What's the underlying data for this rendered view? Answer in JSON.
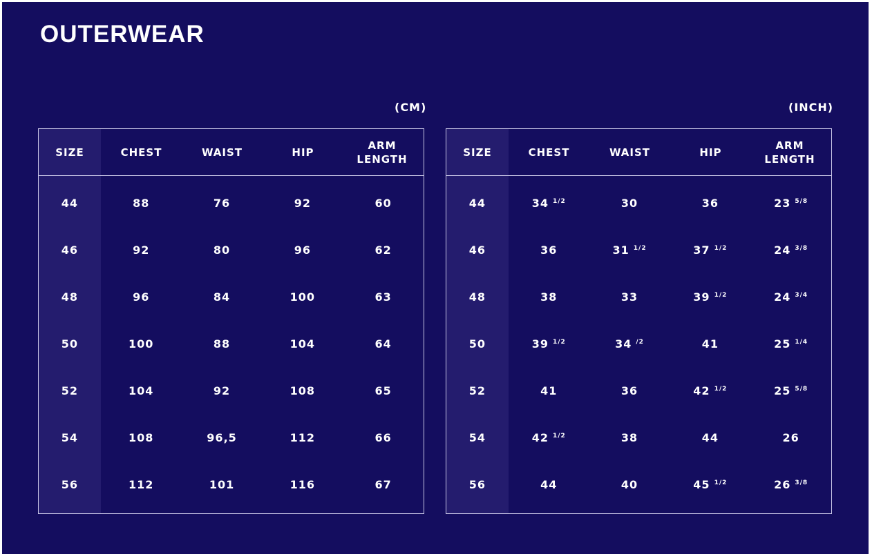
{
  "title": "OUTERWEAR",
  "colors": {
    "background": "#140d5f",
    "size_column": "#241c6e",
    "border": "#c9c6e6",
    "text": "#ffffff"
  },
  "tables": [
    {
      "unit": "(CM)",
      "headers": [
        "SIZE",
        "CHEST",
        "WAIST",
        "HIP",
        "ARM LENGTH"
      ],
      "rows": [
        [
          [
            "44",
            ""
          ],
          [
            "88",
            ""
          ],
          [
            "76",
            ""
          ],
          [
            "92",
            ""
          ],
          [
            "60",
            ""
          ]
        ],
        [
          [
            "46",
            ""
          ],
          [
            "92",
            ""
          ],
          [
            "80",
            ""
          ],
          [
            "96",
            ""
          ],
          [
            "62",
            ""
          ]
        ],
        [
          [
            "48",
            ""
          ],
          [
            "96",
            ""
          ],
          [
            "84",
            ""
          ],
          [
            "100",
            ""
          ],
          [
            "63",
            ""
          ]
        ],
        [
          [
            "50",
            ""
          ],
          [
            "100",
            ""
          ],
          [
            "88",
            ""
          ],
          [
            "104",
            ""
          ],
          [
            "64",
            ""
          ]
        ],
        [
          [
            "52",
            ""
          ],
          [
            "104",
            ""
          ],
          [
            "92",
            ""
          ],
          [
            "108",
            ""
          ],
          [
            "65",
            ""
          ]
        ],
        [
          [
            "54",
            ""
          ],
          [
            "108",
            ""
          ],
          [
            "96,5",
            ""
          ],
          [
            "112",
            ""
          ],
          [
            "66",
            ""
          ]
        ],
        [
          [
            "56",
            ""
          ],
          [
            "112",
            ""
          ],
          [
            "101",
            ""
          ],
          [
            "116",
            ""
          ],
          [
            "67",
            ""
          ]
        ]
      ]
    },
    {
      "unit": "(INCH)",
      "headers": [
        "SIZE",
        "CHEST",
        "WAIST",
        "HIP",
        "ARM LENGTH"
      ],
      "rows": [
        [
          [
            "44",
            ""
          ],
          [
            "34",
            "1/2"
          ],
          [
            "30",
            ""
          ],
          [
            "36",
            ""
          ],
          [
            "23",
            "5/8"
          ]
        ],
        [
          [
            "46",
            ""
          ],
          [
            "36",
            ""
          ],
          [
            "31",
            "1/2"
          ],
          [
            "37",
            "1/2"
          ],
          [
            "24",
            "3/8"
          ]
        ],
        [
          [
            "48",
            ""
          ],
          [
            "38",
            ""
          ],
          [
            "33",
            ""
          ],
          [
            "39",
            "1/2"
          ],
          [
            "24",
            "3/4"
          ]
        ],
        [
          [
            "50",
            ""
          ],
          [
            "39",
            "1/2"
          ],
          [
            "34",
            "/2"
          ],
          [
            "41",
            ""
          ],
          [
            "25",
            "1/4"
          ]
        ],
        [
          [
            "52",
            ""
          ],
          [
            "41",
            ""
          ],
          [
            "36",
            ""
          ],
          [
            "42",
            "1/2"
          ],
          [
            "25",
            "5/8"
          ]
        ],
        [
          [
            "54",
            ""
          ],
          [
            "42",
            "1/2"
          ],
          [
            "38",
            ""
          ],
          [
            "44",
            ""
          ],
          [
            "26",
            ""
          ]
        ],
        [
          [
            "56",
            ""
          ],
          [
            "44",
            ""
          ],
          [
            "40",
            ""
          ],
          [
            "45",
            "1/2"
          ],
          [
            "26",
            "3/8"
          ]
        ]
      ]
    }
  ]
}
